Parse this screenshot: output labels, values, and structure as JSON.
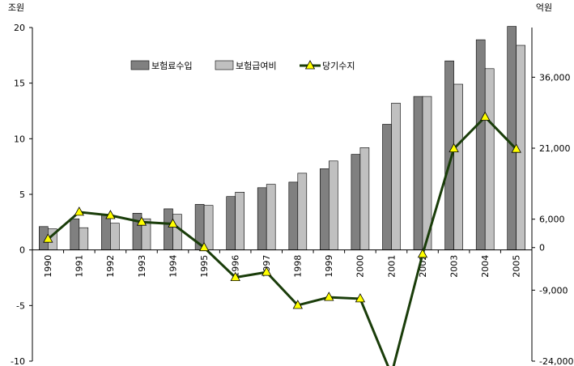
{
  "chart_data": {
    "type": "bar",
    "title": "",
    "xlabel": "",
    "ylabel_left": "조원",
    "ylabel_right": "억원",
    "categories": [
      "1990",
      "1991",
      "1992",
      "1993",
      "1994",
      "1995",
      "1996",
      "1997",
      "1998",
      "1999",
      "2000",
      "2001",
      "2002",
      "2003",
      "2004",
      "2005"
    ],
    "series": [
      {
        "name": "보험료수입",
        "kind": "bar",
        "axis": "left",
        "color": "#808080",
        "values": [
          2.1,
          2.8,
          3.1,
          3.3,
          3.7,
          4.1,
          4.8,
          5.6,
          6.1,
          7.3,
          8.6,
          11.3,
          13.8,
          17.0,
          18.9,
          20.1
        ]
      },
      {
        "name": "보험급여비",
        "kind": "bar",
        "axis": "left",
        "color": "#c0c0c0",
        "values": [
          1.9,
          2.0,
          2.4,
          2.8,
          3.2,
          4.0,
          5.2,
          5.9,
          6.9,
          8.0,
          9.2,
          13.2,
          13.8,
          14.9,
          16.3,
          18.4
        ]
      },
      {
        "name": "당기수지",
        "kind": "line",
        "axis": "right",
        "color": "#1a3d0a",
        "marker_color": "#ffff00",
        "values": [
          1800,
          7500,
          6800,
          5400,
          5000,
          0,
          -6300,
          -5200,
          -12200,
          -10500,
          -10800,
          -26800,
          -1400,
          20900,
          27600,
          20800
        ]
      }
    ],
    "ylim_left": [
      -10,
      20
    ],
    "yticks_left": [
      "20",
      "15",
      "10",
      "5",
      "0",
      "-5",
      "-10"
    ],
    "ylim_right": [
      -24000,
      46500
    ],
    "yticks_right": [
      "36,000",
      "21,000",
      "6,000",
      "0",
      "-9,000",
      "-24,000"
    ],
    "legend_position": "top-center",
    "grid": false
  }
}
